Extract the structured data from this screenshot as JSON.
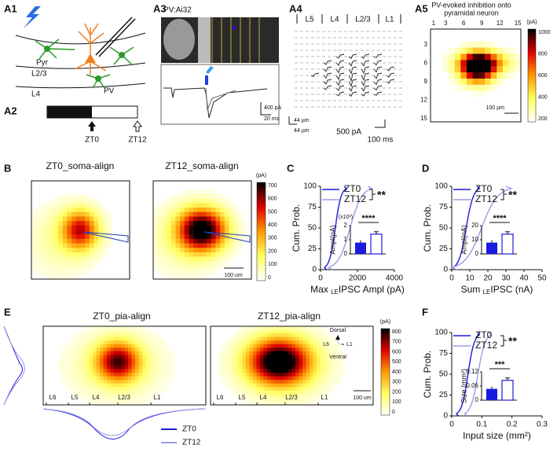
{
  "labels": [
    "A1",
    "A2",
    "A3",
    "A4",
    "A5",
    "B",
    "C",
    "D",
    "E",
    "F"
  ],
  "a1": {
    "pyr": "Pyr",
    "l23": "L2/3",
    "l4": "L4",
    "pv": "PV"
  },
  "a2": {
    "zt0": "ZT0",
    "zt12": "ZT12"
  },
  "a3": {
    "title": "PV:Ai32",
    "scale_current": "400 pA",
    "scale_time": "20 ms"
  },
  "a4": {
    "layers": [
      "L5",
      "L4",
      "L2/3",
      "L1"
    ],
    "scale_x": "44 µm",
    "scale_y": "44 µm",
    "scale_current": "500 pA",
    "scale_time": "100 ms"
  },
  "a5": {
    "title": [
      "PV-evoked inhibition onto",
      "pyramidal neuron"
    ],
    "x_ticks": [
      "1",
      "3",
      "6",
      "9",
      "12",
      "15"
    ],
    "y_ticks": [
      "3",
      "6",
      "9",
      "12",
      "15"
    ],
    "colorbar_unit": "(pA)",
    "colorbar_ticks": [
      "1000",
      "800",
      "600",
      "400",
      "200"
    ],
    "scale": "100 µm"
  },
  "b": {
    "titles": [
      "ZT0_soma-align",
      "ZT12_soma-align"
    ],
    "colorbar_unit": "(pA)",
    "colorbar_ticks": [
      "700",
      "600",
      "500",
      "400",
      "300",
      "200",
      "100",
      "0"
    ],
    "scale": "100 um"
  },
  "c": {
    "legend": [
      "ZT0",
      "ZT12"
    ],
    "significance": "**",
    "y_label": "Cum. Prob.",
    "y_ticks": [
      "0",
      "25",
      "50",
      "75",
      "100"
    ],
    "x_ticks": [
      "0",
      "2000",
      "4000"
    ],
    "x_label": {
      "pre": "Max ",
      "sub": "LE",
      "post": "IPSC Ampl (pA)"
    },
    "inset": {
      "multiplier": "(x10³)",
      "y_ticks": [
        "0",
        "1",
        "2"
      ],
      "y_label": "Ampl(pA)",
      "significance": "****"
    }
  },
  "d": {
    "legend": [
      "ZT0",
      "ZT12"
    ],
    "significance": "**",
    "y_label": "Cum. Prob.",
    "y_ticks": [
      "0",
      "25",
      "50",
      "75",
      "100"
    ],
    "x_ticks": [
      "0",
      "10",
      "20",
      "30",
      "40",
      "50"
    ],
    "x_label": {
      "pre": "Sum ",
      "sub": "LE",
      "post": "IPSC (nA)"
    },
    "inset": {
      "y_ticks": [
        "0",
        "10",
        "20"
      ],
      "y_label": "Ampl(nA)",
      "significance": "****"
    }
  },
  "e": {
    "titles": [
      "ZT0_pia-align",
      "ZT12_pia-align"
    ],
    "colorbar_unit": "(pA)",
    "colorbar_ticks": [
      "800",
      "700",
      "600",
      "500",
      "400",
      "300",
      "200",
      "100",
      "0"
    ],
    "compass": {
      "up": "Dorsal",
      "down": "Ventral",
      "left": "L6",
      "right": "L1"
    },
    "layers": [
      "L6",
      "L5",
      "L4",
      "L2/3",
      "L1"
    ],
    "scale": "100 um",
    "legend": [
      "ZT0",
      "ZT12"
    ]
  },
  "f": {
    "legend": [
      "ZT0",
      "ZT12"
    ],
    "significance": "**",
    "y_label": "Cum. Prob.",
    "y_ticks": [
      "0",
      "25",
      "50",
      "75",
      "100"
    ],
    "x_ticks": [
      "0",
      "0.1",
      "0.2",
      "0.3"
    ],
    "x_label": "Input size (mm²)",
    "inset": {
      "y_ticks": [
        "0",
        "0.06",
        "0.12"
      ],
      "y_label": "Size (mm²)",
      "significance": "***"
    }
  }
}
